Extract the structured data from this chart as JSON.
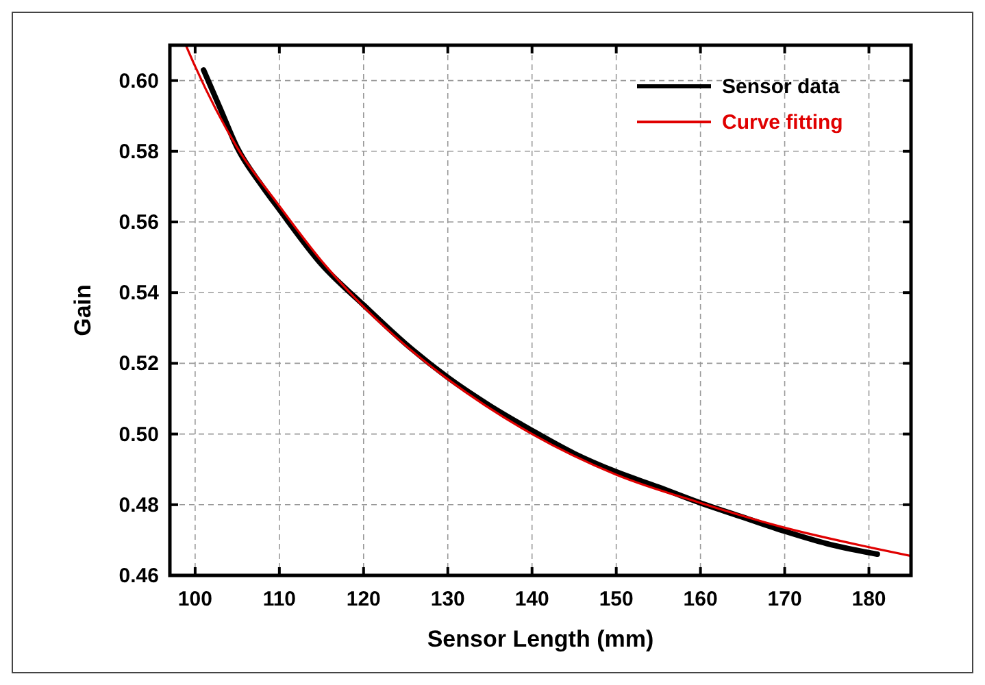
{
  "chart_data": {
    "type": "line",
    "xlabel": "Sensor Length (mm)",
    "ylabel": "Gain",
    "xlim": [
      97,
      185
    ],
    "ylim": [
      0.46,
      0.61
    ],
    "xticks": [
      100,
      110,
      120,
      130,
      140,
      150,
      160,
      170,
      180
    ],
    "yticks": [
      0.46,
      0.48,
      {
        "value": 0.5,
        "label": "0.50"
      },
      0.52,
      0.54,
      0.56,
      0.58,
      {
        "value": 0.6,
        "label": "0.60"
      }
    ],
    "grid": true,
    "legend": "top right",
    "series": [
      {
        "name": "Sensor data",
        "color": "#000000",
        "x": [
          101,
          103,
          105,
          108,
          110,
          115,
          120,
          125,
          130,
          135,
          140,
          145,
          150,
          155,
          160,
          165,
          170,
          175,
          181
        ],
        "values": [
          0.603,
          0.592,
          0.581,
          0.57,
          0.5635,
          0.548,
          0.5365,
          0.5255,
          0.516,
          0.508,
          0.501,
          0.4945,
          0.4893,
          0.485,
          0.4805,
          0.4765,
          0.4725,
          0.469,
          0.466
        ]
      },
      {
        "name": "Curve fitting",
        "color": "#e00000",
        "x": [
          98.9,
          100,
          105,
          110,
          115,
          120,
          125,
          130,
          140,
          150,
          160,
          170,
          180,
          185
        ],
        "values": [
          0.61,
          0.604,
          0.581,
          0.5645,
          0.549,
          0.536,
          0.525,
          0.5155,
          0.5,
          0.4885,
          0.4805,
          0.4735,
          0.468,
          0.4655
        ]
      }
    ]
  }
}
